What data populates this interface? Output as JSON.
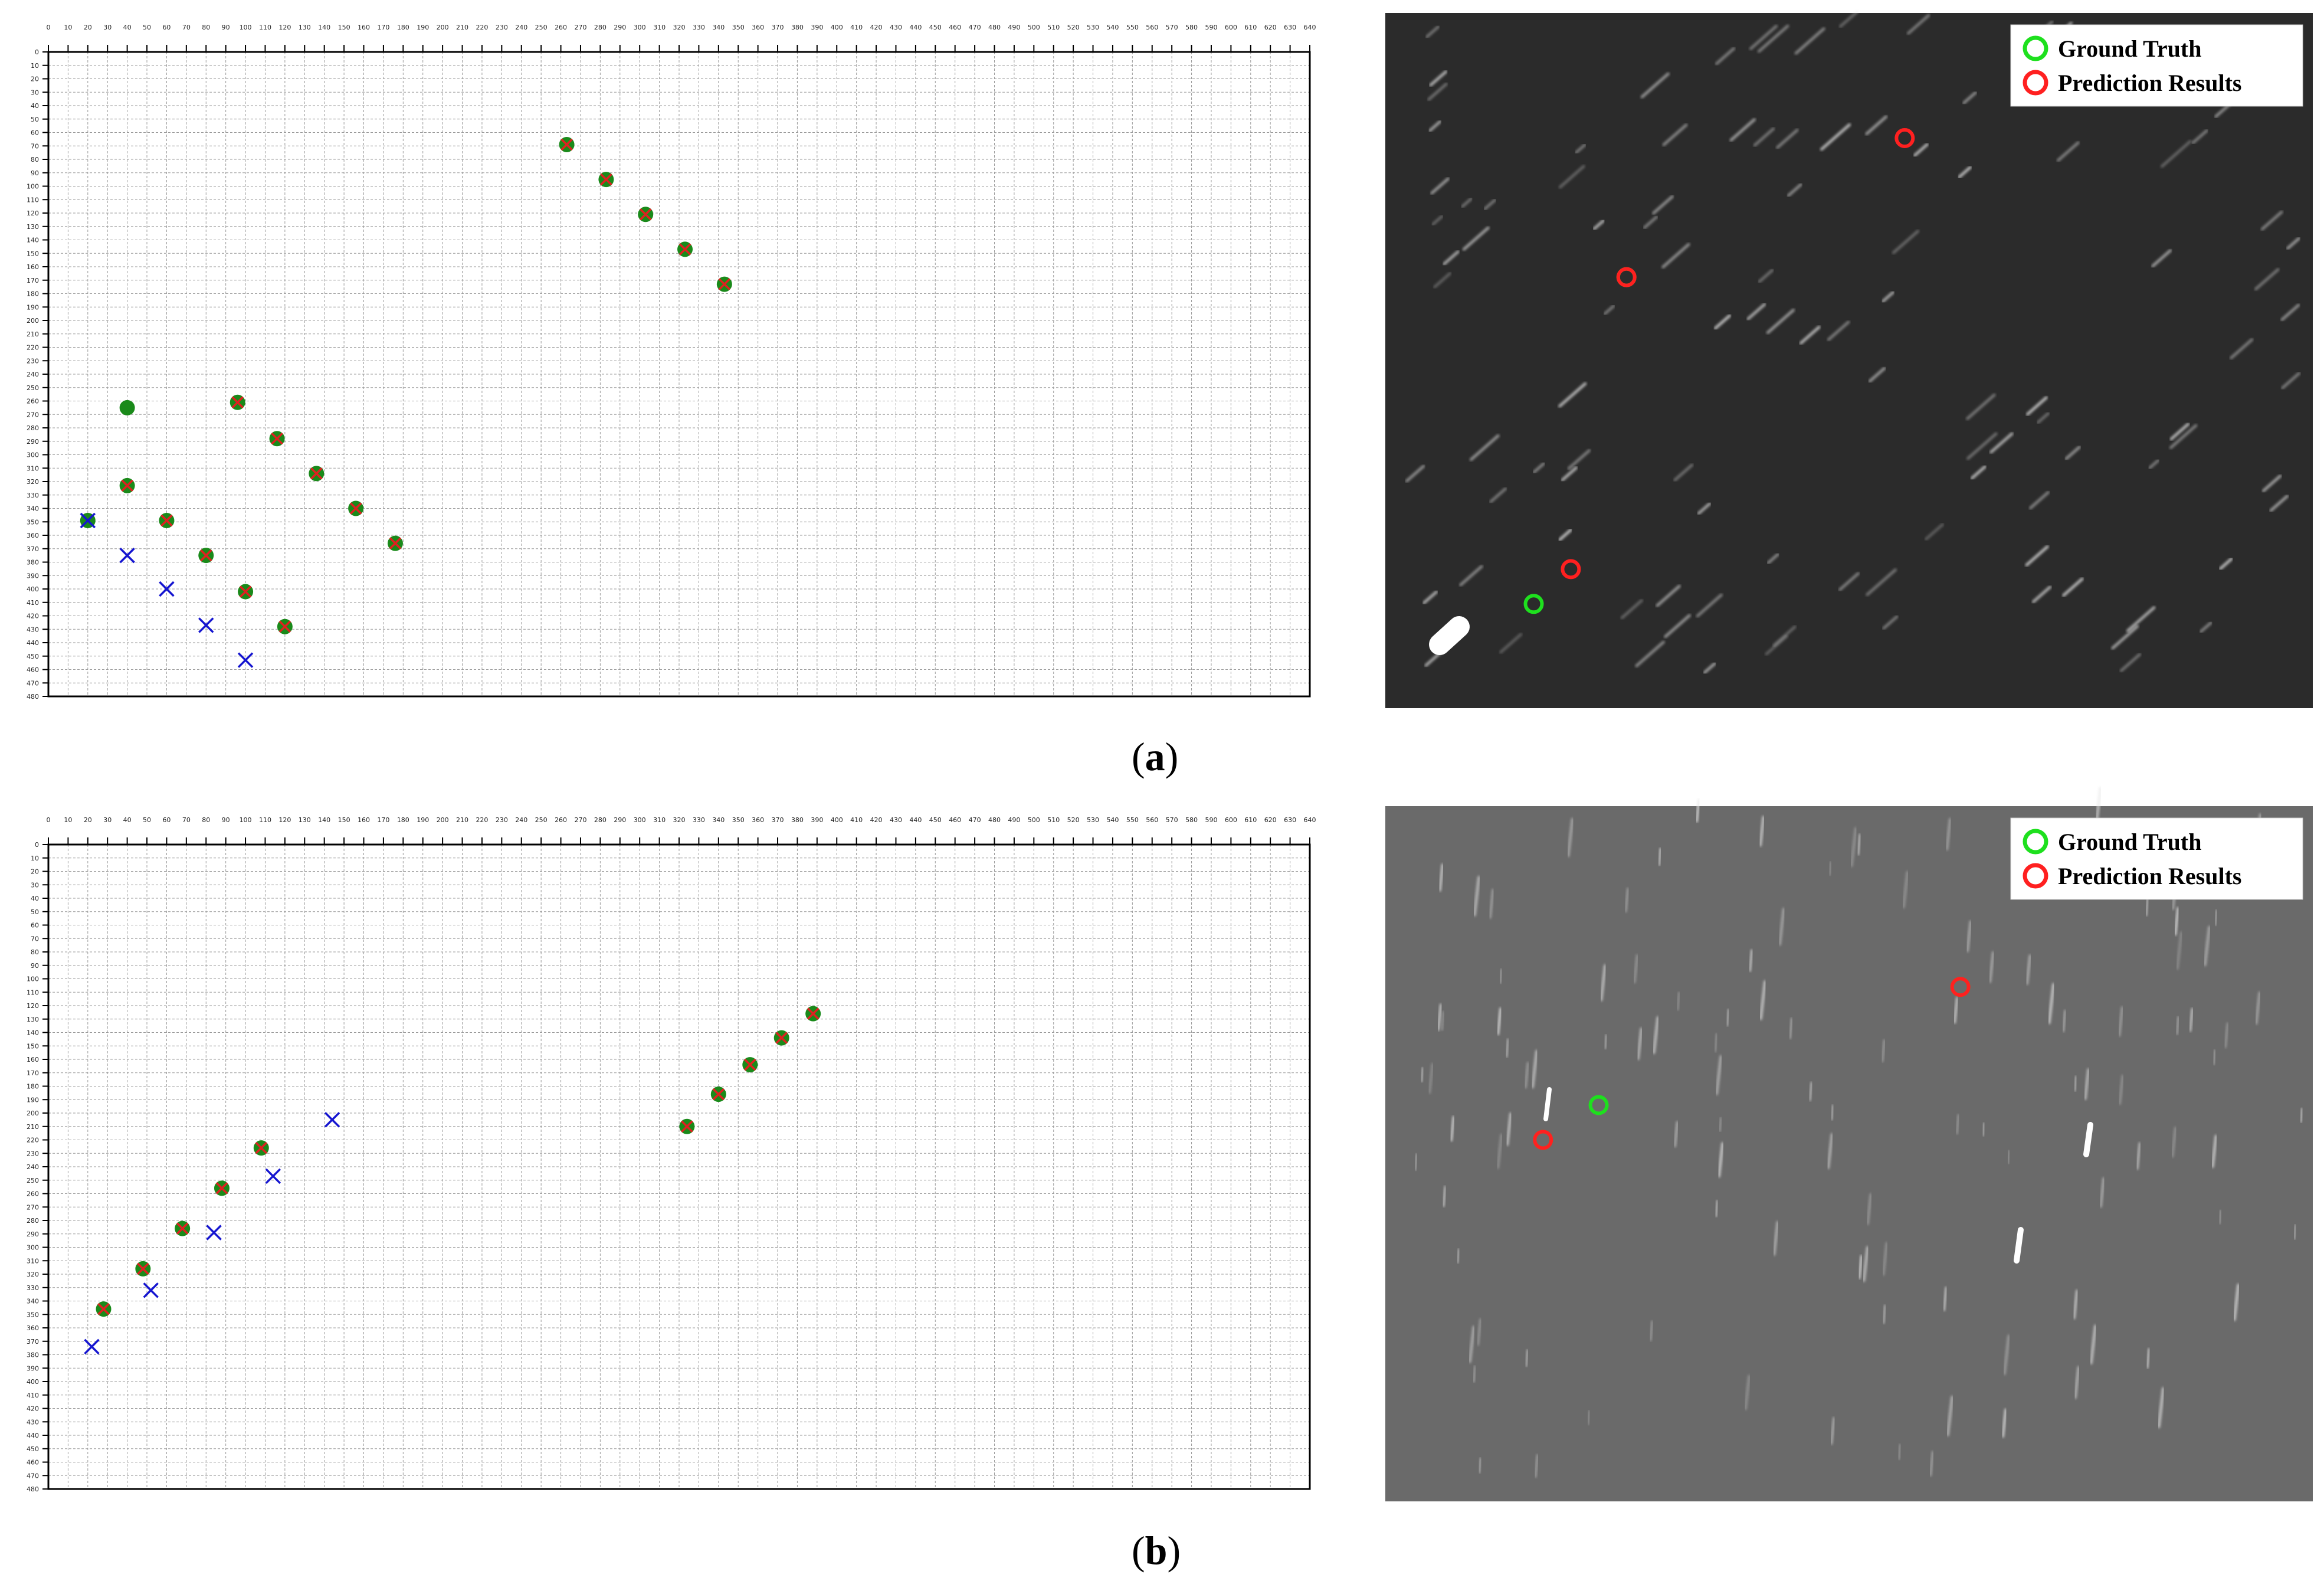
{
  "panels": [
    {
      "caption_open": "(",
      "caption_letter": "a",
      "caption_close": ")",
      "legend": {
        "gt_label": "Ground Truth",
        "pred_label": "Prediction Results"
      },
      "chart": {
        "type": "scatter",
        "xlim": [
          0,
          640
        ],
        "ylim": [
          0,
          480
        ],
        "y_inverted": true,
        "x_ticks": [
          0,
          10,
          20,
          30,
          40,
          50,
          60,
          70,
          80,
          90,
          100,
          110,
          120,
          130,
          140,
          150,
          160,
          170,
          180,
          190,
          200,
          210,
          220,
          230,
          240,
          250,
          260,
          270,
          280,
          290,
          300,
          310,
          320,
          330,
          340,
          350,
          360,
          370,
          380,
          390,
          400,
          410,
          420,
          430,
          440,
          450,
          460,
          470,
          480,
          490,
          500,
          510,
          520,
          530,
          540,
          550,
          560,
          570,
          580,
          590,
          600,
          610,
          620,
          630,
          640
        ],
        "y_ticks": [
          0,
          10,
          20,
          30,
          40,
          50,
          60,
          70,
          80,
          90,
          100,
          110,
          120,
          130,
          140,
          150,
          160,
          170,
          180,
          190,
          200,
          210,
          220,
          230,
          240,
          250,
          260,
          270,
          280,
          290,
          300,
          310,
          320,
          330,
          340,
          350,
          360,
          370,
          380,
          390,
          400,
          410,
          420,
          430,
          440,
          450,
          460,
          470,
          480
        ],
        "grid": true,
        "series": [
          {
            "color": "#1a8a1a",
            "marker": "dot",
            "points": [
              [
                20,
                349
              ],
              [
                40,
                265
              ],
              [
                40,
                323
              ],
              [
                60,
                349
              ],
              [
                80,
                375
              ],
              [
                100,
                402
              ],
              [
                120,
                428
              ],
              [
                96,
                261
              ],
              [
                116,
                288
              ],
              [
                136,
                314
              ],
              [
                156,
                340
              ],
              [
                176,
                366
              ],
              [
                263,
                69
              ],
              [
                283,
                95
              ],
              [
                303,
                121
              ],
              [
                323,
                147
              ],
              [
                343,
                173
              ]
            ]
          },
          {
            "color": "#e02020",
            "marker": "x-small",
            "points": [
              [
                40,
                323
              ],
              [
                60,
                349
              ],
              [
                80,
                375
              ],
              [
                100,
                402
              ],
              [
                120,
                428
              ],
              [
                96,
                261
              ],
              [
                116,
                288
              ],
              [
                136,
                314
              ],
              [
                156,
                340
              ],
              [
                176,
                366
              ],
              [
                263,
                69
              ],
              [
                283,
                95
              ],
              [
                303,
                121
              ],
              [
                323,
                147
              ],
              [
                343,
                173
              ]
            ]
          },
          {
            "color": "#1515d0",
            "marker": "x",
            "points": [
              [
                20,
                349
              ],
              [
                40,
                375
              ],
              [
                60,
                400
              ],
              [
                80,
                427
              ],
              [
                100,
                453
              ]
            ]
          }
        ]
      },
      "image_annotations": {
        "background": "#2b2b2b",
        "gt_circles": [
          [
            0.16,
            0.85
          ],
          [
            0.26,
            0.38
          ]
        ],
        "pred_circles": [
          [
            0.56,
            0.18
          ],
          [
            0.26,
            0.38
          ],
          [
            0.2,
            0.8
          ]
        ]
      }
    },
    {
      "caption_open": "(",
      "caption_letter": "b",
      "caption_close": ")",
      "legend": {
        "gt_label": "Ground Truth",
        "pred_label": "Prediction Results"
      },
      "chart": {
        "type": "scatter",
        "xlim": [
          0,
          640
        ],
        "ylim": [
          0,
          480
        ],
        "y_inverted": true,
        "x_ticks": [
          0,
          10,
          20,
          30,
          40,
          50,
          60,
          70,
          80,
          90,
          100,
          110,
          120,
          130,
          140,
          150,
          160,
          170,
          180,
          190,
          200,
          210,
          220,
          230,
          240,
          250,
          260,
          270,
          280,
          290,
          300,
          310,
          320,
          330,
          340,
          350,
          360,
          370,
          380,
          390,
          400,
          410,
          420,
          430,
          440,
          450,
          460,
          470,
          480,
          490,
          500,
          510,
          520,
          530,
          540,
          550,
          560,
          570,
          580,
          590,
          600,
          610,
          620,
          630,
          640
        ],
        "y_ticks": [
          0,
          10,
          20,
          30,
          40,
          50,
          60,
          70,
          80,
          90,
          100,
          110,
          120,
          130,
          140,
          150,
          160,
          170,
          180,
          190,
          200,
          210,
          220,
          230,
          240,
          250,
          260,
          270,
          280,
          290,
          300,
          310,
          320,
          330,
          340,
          350,
          360,
          370,
          380,
          390,
          400,
          410,
          420,
          430,
          440,
          450,
          460,
          470,
          480
        ],
        "grid": true,
        "series": [
          {
            "color": "#1a8a1a",
            "marker": "dot",
            "points": [
              [
                28,
                346
              ],
              [
                48,
                316
              ],
              [
                68,
                286
              ],
              [
                88,
                256
              ],
              [
                108,
                226
              ],
              [
                324,
                210
              ],
              [
                340,
                186
              ],
              [
                356,
                164
              ],
              [
                372,
                144
              ],
              [
                388,
                126
              ]
            ]
          },
          {
            "color": "#e02020",
            "marker": "x-small",
            "points": [
              [
                28,
                346
              ],
              [
                48,
                316
              ],
              [
                68,
                286
              ],
              [
                88,
                256
              ],
              [
                108,
                226
              ],
              [
                324,
                210
              ],
              [
                340,
                186
              ],
              [
                356,
                164
              ],
              [
                372,
                144
              ],
              [
                388,
                126
              ]
            ]
          },
          {
            "color": "#1515d0",
            "marker": "x",
            "points": [
              [
                22,
                374
              ],
              [
                52,
                332
              ],
              [
                84,
                289
              ],
              [
                114,
                247
              ],
              [
                144,
                205
              ]
            ]
          }
        ]
      },
      "image_annotations": {
        "background": "#6a6a6a",
        "gt_circles": [
          [
            0.23,
            0.43
          ],
          [
            0.17,
            0.48
          ],
          [
            0.62,
            0.26
          ]
        ],
        "pred_circles": [
          [
            0.17,
            0.48
          ],
          [
            0.62,
            0.26
          ]
        ]
      }
    }
  ]
}
